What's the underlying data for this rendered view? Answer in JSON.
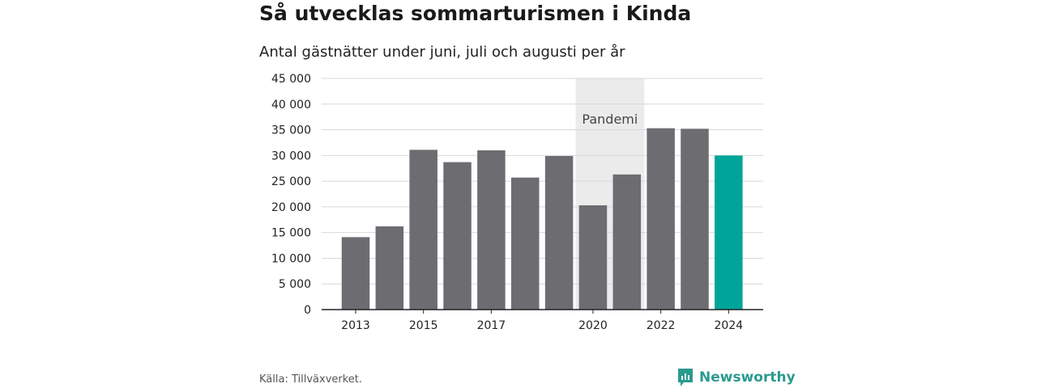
{
  "header": {
    "title": "Så utvecklas sommarturismen i Kinda",
    "subtitle": "Antal gästnätter under juni, juli och augusti per år"
  },
  "footer": {
    "source": "Källa: Tillväxverket.",
    "brand": "Newsworthy"
  },
  "colors": {
    "bar": "#6d6c71",
    "highlight": "#00a499",
    "shade": "#ebebeb",
    "brand": "#2b9a8e"
  },
  "chart_data": {
    "type": "bar",
    "categories": [
      "2013",
      "2014",
      "2015",
      "2016",
      "2017",
      "2018",
      "2019",
      "2020",
      "2021",
      "2022",
      "2023",
      "2024"
    ],
    "x_tick_labels": [
      "2013",
      "2015",
      "2017",
      "2020",
      "2022",
      "2024"
    ],
    "values": [
      14100,
      16200,
      31100,
      28700,
      31000,
      25700,
      29900,
      20300,
      26300,
      35300,
      35200,
      30000
    ],
    "highlight_category": "2024",
    "ylim": [
      0,
      45000
    ],
    "y_ticks": [
      0,
      5000,
      10000,
      15000,
      20000,
      25000,
      30000,
      35000,
      40000,
      45000
    ],
    "y_tick_labels": [
      "0",
      "5 000",
      "10 000",
      "15 000",
      "20 000",
      "25 000",
      "30 000",
      "35 000",
      "40 000",
      "45 000"
    ],
    "grid": true,
    "annotation": {
      "label": "Pandemi",
      "from": "2020",
      "to": "2021"
    }
  }
}
